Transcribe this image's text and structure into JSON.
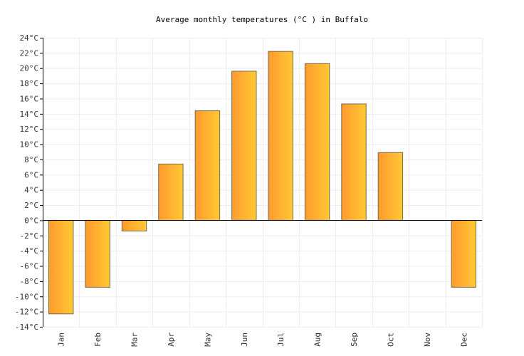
{
  "chart_data": {
    "type": "bar",
    "title": "Average monthly temperatures (°C ) in Buffalo",
    "categories": [
      "Jan",
      "Feb",
      "Mar",
      "Apr",
      "May",
      "Jun",
      "Jul",
      "Aug",
      "Sep",
      "Oct",
      "Nov",
      "Dec"
    ],
    "values": [
      -12.3,
      -8.8,
      -1.4,
      7.4,
      14.4,
      19.6,
      22.2,
      20.6,
      15.3,
      8.9,
      0,
      -8.8
    ],
    "ylim": [
      -14,
      24
    ],
    "ytick_step": 2,
    "ytick_suffix": "°C",
    "xlabel": "",
    "ylabel": "",
    "grid": true,
    "colors": {
      "bar_left": "#ff9a2e",
      "bar_right": "#ffc933",
      "bar_stroke": "#7a6a4a"
    }
  }
}
